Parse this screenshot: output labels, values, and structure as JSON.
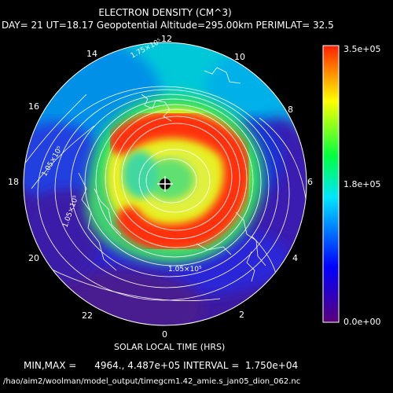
{
  "title": "ELECTRON DENSITY (CM^3)",
  "subtitle": "DAY= 21 UT=18.17 Geopotential Altitude=295.00km PERIMLAT= 32.5",
  "local_time_labels": {
    "h0": "0",
    "h2": "2",
    "h4": "4",
    "h6": "6",
    "h8": "8",
    "h10": "10",
    "h12": "12",
    "h14": "14",
    "h16": "16",
    "h18": "18",
    "h20": "20",
    "h22": "22"
  },
  "xlabel": "SOLAR LOCAL TIME (HRS)",
  "minmax_line": "MIN,MAX =      4964., 4.487e+05 INTERVAL =  1.750e+04",
  "file_path": "/hao/aim2/woolman/model_output/timegcm1.42_amie.s_jan05_dion_062.nc",
  "colorbar": {
    "max_label": "3.5e+05",
    "mid_label": "1.8e+05",
    "min_label": "0.0e+00",
    "range": [
      0,
      350000
    ]
  },
  "contour_labels": {
    "upper": "1.75×10⁵",
    "left": "1.05×10⁵",
    "left_lower": "1.05×10⁵",
    "lower": "1.05×10⁵"
  },
  "chart_data": {
    "type": "heatmap",
    "title": "ELECTRON DENSITY (CM^3)",
    "subtitle": "DAY= 21 UT=18.17 Geopotential Altitude=295.00km PERIMLAT= 32.5",
    "xlabel": "SOLAR LOCAL TIME (HRS)",
    "projection": "polar-stereographic north, perimeter latitude 32.5",
    "min": 4964,
    "max": 448700,
    "interval": 17500,
    "colorbar_range": [
      0,
      350000
    ],
    "colors": [
      "#4b0082",
      "#0000ff",
      "#00ffff",
      "#00ff00",
      "#ffff00",
      "#ff0000"
    ]
  }
}
